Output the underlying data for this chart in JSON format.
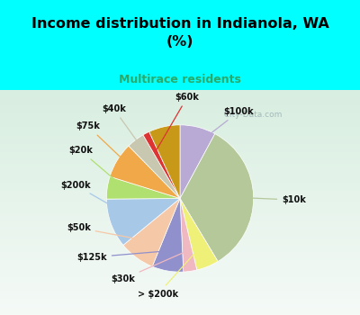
{
  "title": "Income distribution in Indianola, WA\n(%)",
  "subtitle": "Multirace residents",
  "title_color": "#000000",
  "subtitle_color": "#2aaa6a",
  "background_color": "#00ffff",
  "chart_bg_grad_top": "#f0faf5",
  "chart_bg_grad_bot": "#d0eed8",
  "labels": [
    "$100k",
    "$10k",
    "> $200k",
    "$30k",
    "$125k",
    "$50k",
    "$200k",
    "$20k",
    "$75k",
    "$40k",
    "$60k"
  ],
  "values": [
    8,
    34,
    5,
    3,
    7,
    8,
    11,
    5,
    8,
    4,
    7
  ],
  "colors": [
    "#b8aad4",
    "#b5c89a",
    "#eef078",
    "#f0b8c0",
    "#9090cc",
    "#f5c8a8",
    "#a8c8e8",
    "#b0e070",
    "#f0a848",
    "#c8c8b0",
    "#c89818"
  ],
  "red_sliver_color": "#dd3333",
  "startangle": 90,
  "watermark": "  City-Data.com"
}
